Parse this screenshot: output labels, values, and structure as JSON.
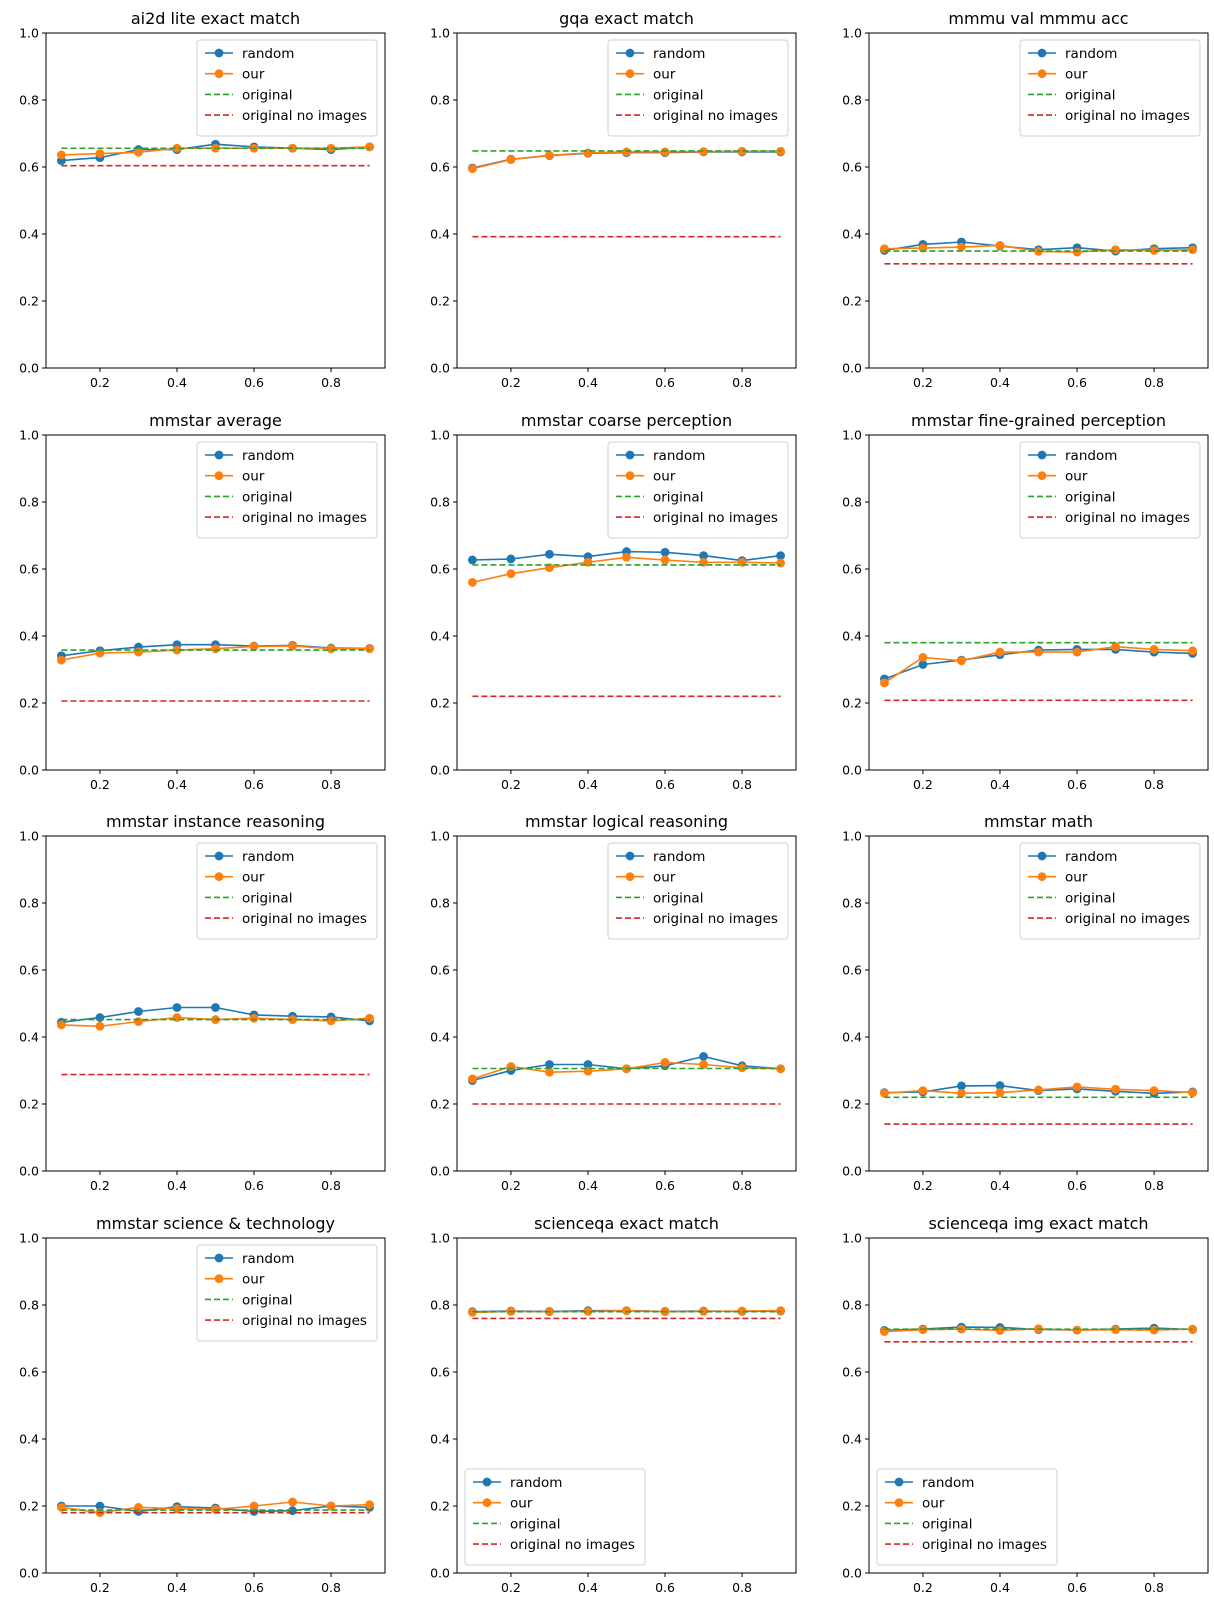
{
  "colors": {
    "random": "#1f77b4",
    "our": "#ff7f0e",
    "original": "#2ca02c",
    "original_no_images": "#d62728"
  },
  "chart_data": [
    {
      "type": "line",
      "title": "ai2d lite exact match",
      "x": [
        0.1,
        0.2,
        0.3,
        0.4,
        0.5,
        0.6,
        0.7,
        0.8,
        0.9
      ],
      "xticks": [
        "0.2",
        "0.4",
        "0.6",
        "0.8"
      ],
      "yticks": [
        "0.0",
        "0.2",
        "0.4",
        "0.6",
        "0.8",
        "1.0"
      ],
      "ylim": [
        0,
        1
      ],
      "legend_loc": "upper-right",
      "series": [
        {
          "name": "random",
          "values": [
            0.619,
            0.628,
            0.652,
            0.652,
            0.668,
            0.66,
            0.656,
            0.652,
            0.66
          ]
        },
        {
          "name": "our",
          "values": [
            0.636,
            0.64,
            0.644,
            0.656,
            0.656,
            0.656,
            0.656,
            0.656,
            0.66
          ]
        },
        {
          "name": "original",
          "value": 0.656,
          "style": "dashed"
        },
        {
          "name": "original no images",
          "value": 0.604,
          "style": "dashed"
        }
      ]
    },
    {
      "type": "line",
      "title": "gqa exact match",
      "x": [
        0.1,
        0.2,
        0.3,
        0.4,
        0.5,
        0.6,
        0.7,
        0.8,
        0.9
      ],
      "xticks": [
        "0.2",
        "0.4",
        "0.6",
        "0.8"
      ],
      "yticks": [
        "0.0",
        "0.2",
        "0.4",
        "0.6",
        "0.8",
        "1.0"
      ],
      "ylim": [
        0,
        1
      ],
      "legend_loc": "upper-right",
      "series": [
        {
          "name": "random",
          "values": [
            0.597,
            0.623,
            0.634,
            0.641,
            0.643,
            0.643,
            0.645,
            0.645,
            0.645
          ]
        },
        {
          "name": "our",
          "values": [
            0.595,
            0.622,
            0.635,
            0.642,
            0.645,
            0.645,
            0.646,
            0.647,
            0.647
          ]
        },
        {
          "name": "original",
          "value": 0.648,
          "style": "dashed"
        },
        {
          "name": "original no images",
          "value": 0.392,
          "style": "dashed"
        }
      ]
    },
    {
      "type": "line",
      "title": "mmmu val mmmu acc",
      "x": [
        0.1,
        0.2,
        0.3,
        0.4,
        0.5,
        0.6,
        0.7,
        0.8,
        0.9
      ],
      "xticks": [
        "0.2",
        "0.4",
        "0.6",
        "0.8"
      ],
      "yticks": [
        "0.0",
        "0.2",
        "0.4",
        "0.6",
        "0.8",
        "1.0"
      ],
      "ylim": [
        0,
        1
      ],
      "legend_loc": "upper-right",
      "series": [
        {
          "name": "random",
          "values": [
            0.351,
            0.369,
            0.376,
            0.364,
            0.353,
            0.359,
            0.349,
            0.356,
            0.359
          ]
        },
        {
          "name": "our",
          "values": [
            0.356,
            0.358,
            0.361,
            0.366,
            0.348,
            0.346,
            0.353,
            0.351,
            0.353
          ]
        },
        {
          "name": "original",
          "value": 0.349,
          "style": "dashed"
        },
        {
          "name": "original no images",
          "value": 0.311,
          "style": "dashed"
        }
      ]
    },
    {
      "type": "line",
      "title": "mmstar average",
      "x": [
        0.1,
        0.2,
        0.3,
        0.4,
        0.5,
        0.6,
        0.7,
        0.8,
        0.9
      ],
      "xticks": [
        "0.2",
        "0.4",
        "0.6",
        "0.8"
      ],
      "yticks": [
        "0.0",
        "0.2",
        "0.4",
        "0.6",
        "0.8",
        "1.0"
      ],
      "ylim": [
        0,
        1
      ],
      "legend_loc": "upper-right",
      "series": [
        {
          "name": "random",
          "values": [
            0.341,
            0.356,
            0.367,
            0.374,
            0.374,
            0.37,
            0.372,
            0.364,
            0.363
          ]
        },
        {
          "name": "our",
          "values": [
            0.328,
            0.349,
            0.352,
            0.358,
            0.362,
            0.369,
            0.37,
            0.362,
            0.362
          ]
        },
        {
          "name": "original",
          "value": 0.358,
          "style": "dashed"
        },
        {
          "name": "original no images",
          "value": 0.206,
          "style": "dashed"
        }
      ]
    },
    {
      "type": "line",
      "title": "mmstar coarse perception",
      "x": [
        0.1,
        0.2,
        0.3,
        0.4,
        0.5,
        0.6,
        0.7,
        0.8,
        0.9
      ],
      "xticks": [
        "0.2",
        "0.4",
        "0.6",
        "0.8"
      ],
      "yticks": [
        "0.0",
        "0.2",
        "0.4",
        "0.6",
        "0.8",
        "1.0"
      ],
      "ylim": [
        0,
        1
      ],
      "legend_loc": "upper-right",
      "series": [
        {
          "name": "random",
          "values": [
            0.627,
            0.63,
            0.644,
            0.637,
            0.652,
            0.65,
            0.64,
            0.625,
            0.64
          ]
        },
        {
          "name": "our",
          "values": [
            0.56,
            0.586,
            0.604,
            0.62,
            0.635,
            0.627,
            0.62,
            0.62,
            0.618
          ]
        },
        {
          "name": "original",
          "value": 0.612,
          "style": "dashed"
        },
        {
          "name": "original no images",
          "value": 0.22,
          "style": "dashed"
        }
      ]
    },
    {
      "type": "line",
      "title": "mmstar fine-grained perception",
      "x": [
        0.1,
        0.2,
        0.3,
        0.4,
        0.5,
        0.6,
        0.7,
        0.8,
        0.9
      ],
      "xticks": [
        "0.2",
        "0.4",
        "0.6",
        "0.8"
      ],
      "yticks": [
        "0.0",
        "0.2",
        "0.4",
        "0.6",
        "0.8",
        "1.0"
      ],
      "ylim": [
        0,
        1
      ],
      "legend_loc": "upper-right",
      "series": [
        {
          "name": "random",
          "values": [
            0.272,
            0.315,
            0.328,
            0.344,
            0.358,
            0.36,
            0.36,
            0.352,
            0.348
          ]
        },
        {
          "name": "our",
          "values": [
            0.26,
            0.336,
            0.326,
            0.352,
            0.352,
            0.352,
            0.368,
            0.36,
            0.356
          ]
        },
        {
          "name": "original",
          "value": 0.38,
          "style": "dashed"
        },
        {
          "name": "original no images",
          "value": 0.208,
          "style": "dashed"
        }
      ]
    },
    {
      "type": "line",
      "title": "mmstar instance reasoning",
      "x": [
        0.1,
        0.2,
        0.3,
        0.4,
        0.5,
        0.6,
        0.7,
        0.8,
        0.9
      ],
      "xticks": [
        "0.2",
        "0.4",
        "0.6",
        "0.8"
      ],
      "yticks": [
        "0.0",
        "0.2",
        "0.4",
        "0.6",
        "0.8",
        "1.0"
      ],
      "ylim": [
        0,
        1
      ],
      "legend_loc": "upper-right",
      "series": [
        {
          "name": "random",
          "values": [
            0.444,
            0.458,
            0.476,
            0.488,
            0.488,
            0.466,
            0.462,
            0.46,
            0.448
          ]
        },
        {
          "name": "our",
          "values": [
            0.436,
            0.432,
            0.446,
            0.458,
            0.452,
            0.456,
            0.452,
            0.448,
            0.456
          ]
        },
        {
          "name": "original",
          "value": 0.452,
          "style": "dashed"
        },
        {
          "name": "original no images",
          "value": 0.288,
          "style": "dashed"
        }
      ]
    },
    {
      "type": "line",
      "title": "mmstar logical reasoning",
      "x": [
        0.1,
        0.2,
        0.3,
        0.4,
        0.5,
        0.6,
        0.7,
        0.8,
        0.9
      ],
      "xticks": [
        "0.2",
        "0.4",
        "0.6",
        "0.8"
      ],
      "yticks": [
        "0.0",
        "0.2",
        "0.4",
        "0.6",
        "0.8",
        "1.0"
      ],
      "ylim": [
        0,
        1
      ],
      "legend_loc": "upper-right",
      "series": [
        {
          "name": "random",
          "values": [
            0.27,
            0.3,
            0.318,
            0.318,
            0.305,
            0.314,
            0.342,
            0.314,
            0.305
          ]
        },
        {
          "name": "our",
          "values": [
            0.275,
            0.312,
            0.295,
            0.298,
            0.305,
            0.324,
            0.318,
            0.308,
            0.305
          ]
        },
        {
          "name": "original",
          "value": 0.306,
          "style": "dashed"
        },
        {
          "name": "original no images",
          "value": 0.2,
          "style": "dashed"
        }
      ]
    },
    {
      "type": "line",
      "title": "mmstar math",
      "x": [
        0.1,
        0.2,
        0.3,
        0.4,
        0.5,
        0.6,
        0.7,
        0.8,
        0.9
      ],
      "xticks": [
        "0.2",
        "0.4",
        "0.6",
        "0.8"
      ],
      "yticks": [
        "0.0",
        "0.2",
        "0.4",
        "0.6",
        "0.8",
        "1.0"
      ],
      "ylim": [
        0,
        1
      ],
      "legend_loc": "upper-right",
      "series": [
        {
          "name": "random",
          "values": [
            0.234,
            0.236,
            0.254,
            0.255,
            0.24,
            0.245,
            0.238,
            0.232,
            0.236
          ]
        },
        {
          "name": "our",
          "values": [
            0.232,
            0.24,
            0.232,
            0.234,
            0.242,
            0.251,
            0.244,
            0.24,
            0.234
          ]
        },
        {
          "name": "original",
          "value": 0.22,
          "style": "dashed"
        },
        {
          "name": "original no images",
          "value": 0.14,
          "style": "dashed"
        }
      ]
    },
    {
      "type": "line",
      "title": "mmstar science & technology",
      "x": [
        0.1,
        0.2,
        0.3,
        0.4,
        0.5,
        0.6,
        0.7,
        0.8,
        0.9
      ],
      "xticks": [
        "0.2",
        "0.4",
        "0.6",
        "0.8"
      ],
      "yticks": [
        "0.0",
        "0.2",
        "0.4",
        "0.6",
        "0.8",
        "1.0"
      ],
      "ylim": [
        0,
        1
      ],
      "legend_loc": "upper-right",
      "series": [
        {
          "name": "random",
          "values": [
            0.2,
            0.2,
            0.184,
            0.198,
            0.194,
            0.184,
            0.186,
            0.2,
            0.196
          ]
        },
        {
          "name": "our",
          "values": [
            0.196,
            0.18,
            0.196,
            0.192,
            0.19,
            0.2,
            0.212,
            0.2,
            0.204
          ]
        },
        {
          "name": "original",
          "value": 0.188,
          "style": "dashed"
        },
        {
          "name": "original no images",
          "value": 0.18,
          "style": "dashed"
        }
      ]
    },
    {
      "type": "line",
      "title": "scienceqa exact match",
      "x": [
        0.1,
        0.2,
        0.3,
        0.4,
        0.5,
        0.6,
        0.7,
        0.8,
        0.9
      ],
      "xticks": [
        "0.2",
        "0.4",
        "0.6",
        "0.8"
      ],
      "yticks": [
        "0.0",
        "0.2",
        "0.4",
        "0.6",
        "0.8",
        "1.0"
      ],
      "ylim": [
        0,
        1
      ],
      "legend_loc": "lower-left",
      "series": [
        {
          "name": "random",
          "values": [
            0.78,
            0.782,
            0.781,
            0.783,
            0.783,
            0.781,
            0.782,
            0.781,
            0.782
          ]
        },
        {
          "name": "our",
          "values": [
            0.778,
            0.781,
            0.78,
            0.781,
            0.783,
            0.78,
            0.781,
            0.782,
            0.783
          ]
        },
        {
          "name": "original",
          "value": 0.78,
          "style": "dashed"
        },
        {
          "name": "original no images",
          "value": 0.76,
          "style": "dashed"
        }
      ]
    },
    {
      "type": "line",
      "title": "scienceqa img exact match",
      "x": [
        0.1,
        0.2,
        0.3,
        0.4,
        0.5,
        0.6,
        0.7,
        0.8,
        0.9
      ],
      "xticks": [
        "0.2",
        "0.4",
        "0.6",
        "0.8"
      ],
      "yticks": [
        "0.0",
        "0.2",
        "0.4",
        "0.6",
        "0.8",
        "1.0"
      ],
      "ylim": [
        0,
        1
      ],
      "legend_loc": "lower-left",
      "series": [
        {
          "name": "random",
          "values": [
            0.724,
            0.728,
            0.734,
            0.733,
            0.727,
            0.725,
            0.728,
            0.731,
            0.727
          ]
        },
        {
          "name": "our",
          "values": [
            0.721,
            0.726,
            0.728,
            0.724,
            0.729,
            0.725,
            0.726,
            0.725,
            0.728
          ]
        },
        {
          "name": "original",
          "value": 0.728,
          "style": "dashed"
        },
        {
          "name": "original no images",
          "value": 0.69,
          "style": "dashed"
        }
      ]
    }
  ]
}
